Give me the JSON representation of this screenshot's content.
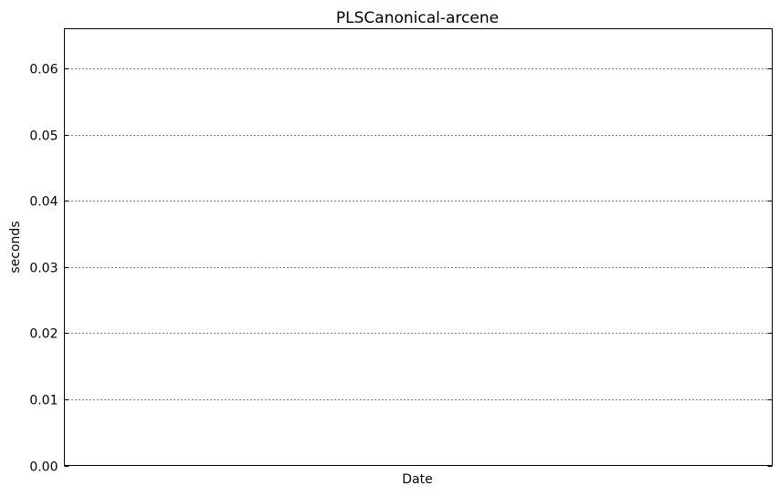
{
  "chart_data": {
    "type": "line",
    "title": "PLSCanonical-arcene",
    "xlabel": "Date",
    "ylabel": "seconds",
    "ylim": [
      0,
      0.066
    ],
    "y_ticks": [
      "0.00",
      "0.01",
      "0.02",
      "0.03",
      "0.04",
      "0.05",
      "0.06"
    ],
    "y_tick_values": [
      0,
      0.01,
      0.02,
      0.03,
      0.04,
      0.05,
      0.06
    ],
    "grid": "horizontal dotted",
    "series": []
  }
}
